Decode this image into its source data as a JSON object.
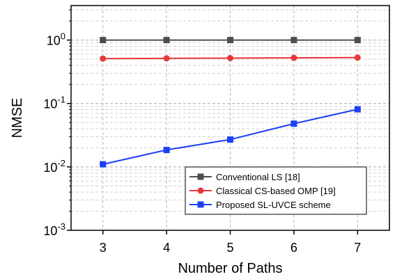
{
  "chart_data": {
    "type": "line",
    "x": [
      3,
      4,
      5,
      6,
      7
    ],
    "xlabel": "Number of Paths",
    "ylabel": "NMSE",
    "xlim": [
      2.5,
      7.5
    ],
    "ylim": [
      0.001,
      3.5
    ],
    "yscale": "log",
    "grid": true,
    "legend_position": "bottom-right",
    "x_ticks": [
      "3",
      "4",
      "5",
      "6",
      "7"
    ],
    "y_ticks": [
      {
        "value": 0.001,
        "base": "10",
        "exp": "-3"
      },
      {
        "value": 0.01,
        "base": "10",
        "exp": "-2"
      },
      {
        "value": 0.1,
        "base": "10",
        "exp": "-1"
      },
      {
        "value": 1,
        "base": "10",
        "exp": "0"
      }
    ],
    "series": [
      {
        "name": "Conventional LS [18]",
        "color": "#4d4d4d",
        "marker": "square",
        "values": [
          1.0,
          1.0,
          1.0,
          1.0,
          1.0
        ]
      },
      {
        "name": "Classical CS-based OMP [19]",
        "color": "#e8373b",
        "marker": "circle",
        "values": [
          0.51,
          0.515,
          0.52,
          0.525,
          0.53
        ]
      },
      {
        "name": "Proposed SL-UVCE scheme",
        "color": "#1e3ff5",
        "marker": "square",
        "values": [
          0.011,
          0.0185,
          0.027,
          0.048,
          0.081
        ]
      }
    ]
  }
}
